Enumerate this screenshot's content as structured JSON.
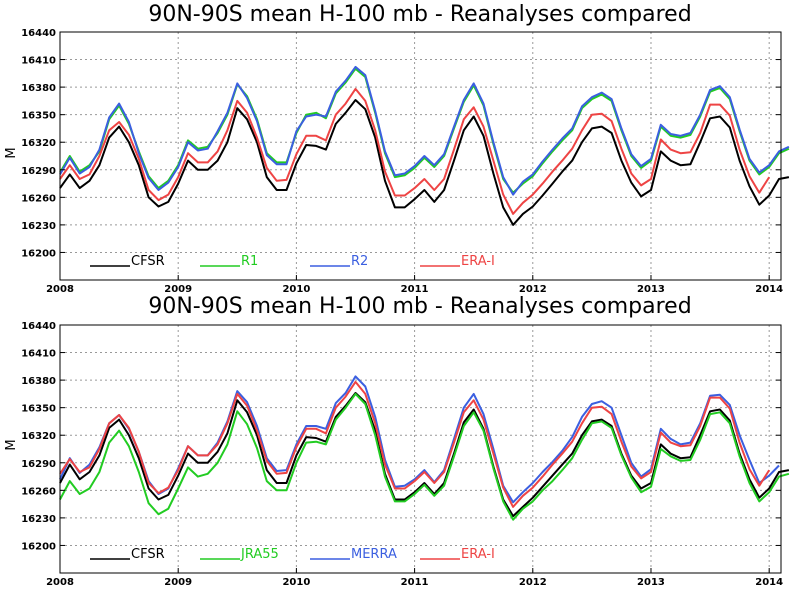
{
  "chart_data": [
    {
      "type": "line",
      "title": "90N-90S mean H-100 mb - Reanalyses compared",
      "ylabel": "M",
      "xlabel": "",
      "xlim": [
        2008,
        2014.1
      ],
      "ylim": [
        16170,
        16440
      ],
      "yticks": [
        16200,
        16230,
        16260,
        16290,
        16320,
        16350,
        16380,
        16410,
        16440
      ],
      "xticks": [
        2008,
        2009,
        2010,
        2011,
        2012,
        2013,
        2014
      ],
      "grid": true,
      "legend_placement": "bottom",
      "series": [
        {
          "name": "CFSR",
          "color": "#000000",
          "start": 2008.0,
          "values": [
            16270,
            16285,
            16270,
            16278,
            16295,
            16325,
            16337,
            16320,
            16295,
            16260,
            16250,
            16255,
            16275,
            16300,
            16290,
            16290,
            16300,
            16320,
            16357,
            16345,
            16320,
            16282,
            16268,
            16268,
            16297,
            16317,
            16316,
            16312,
            16340,
            16352,
            16366,
            16356,
            16325,
            16278,
            16249,
            16249,
            16258,
            16268,
            16255,
            16268,
            16300,
            16333,
            16348,
            16327,
            16286,
            16249,
            16230,
            16242,
            16250,
            16262,
            16275,
            16288,
            16300,
            16320,
            16335,
            16337,
            16330,
            16300,
            16276,
            16261,
            16268,
            16310,
            16300,
            16295,
            16296,
            16320,
            16346,
            16348,
            16336,
            16300,
            16272,
            16252,
            16262,
            16280,
            16282
          ]
        },
        {
          "name": "R1",
          "color": "#22cc22",
          "start": 2008.0,
          "values": [
            16287,
            16305,
            16288,
            16295,
            16310,
            16345,
            16360,
            16340,
            16310,
            16283,
            16270,
            16278,
            16295,
            16322,
            16313,
            16315,
            16330,
            16350,
            16383,
            16370,
            16345,
            16308,
            16298,
            16298,
            16330,
            16350,
            16352,
            16346,
            16373,
            16385,
            16400,
            16391,
            16352,
            16308,
            16282,
            16284,
            16292,
            16303,
            16293,
            16305,
            16335,
            16364,
            16382,
            16360,
            16318,
            16280,
            16265,
            16275,
            16283,
            16297,
            16310,
            16322,
            16333,
            16357,
            16367,
            16372,
            16365,
            16333,
            16305,
            16292,
            16300,
            16337,
            16327,
            16325,
            16328,
            16348,
            16375,
            16379,
            16367,
            16332,
            16300,
            16285,
            16293,
            16308,
            16313
          ]
        },
        {
          "name": "R2",
          "color": "#3b5fe0",
          "start": 2008.0,
          "values": [
            16285,
            16303,
            16286,
            16293,
            16312,
            16347,
            16362,
            16342,
            16308,
            16281,
            16268,
            16276,
            16293,
            16320,
            16311,
            16313,
            16332,
            16352,
            16384,
            16368,
            16343,
            16306,
            16296,
            16296,
            16332,
            16348,
            16350,
            16348,
            16375,
            16387,
            16402,
            16393,
            16354,
            16310,
            16284,
            16286,
            16294,
            16305,
            16295,
            16307,
            16337,
            16366,
            16384,
            16362,
            16320,
            16282,
            16263,
            16277,
            16285,
            16299,
            16312,
            16324,
            16335,
            16359,
            16369,
            16374,
            16367,
            16335,
            16307,
            16294,
            16302,
            16339,
            16329,
            16327,
            16330,
            16350,
            16377,
            16381,
            16369,
            16334,
            16302,
            16287,
            16295,
            16310,
            16315
          ]
        },
        {
          "name": "ERA-I",
          "color": "#ee4444",
          "start": 2008.0,
          "values": [
            16280,
            16295,
            16280,
            16285,
            16305,
            16333,
            16342,
            16328,
            16302,
            16268,
            16257,
            16263,
            16282,
            16308,
            16298,
            16298,
            16310,
            16333,
            16365,
            16352,
            16325,
            16292,
            16278,
            16279,
            16307,
            16327,
            16327,
            16322,
            16350,
            16362,
            16378,
            16365,
            16333,
            16288,
            16262,
            16262,
            16270,
            16280,
            16268,
            16280,
            16312,
            16345,
            16358,
            16337,
            16300,
            16263,
            16242,
            16254,
            16263,
            16275,
            16288,
            16300,
            16313,
            16333,
            16350,
            16351,
            16343,
            16313,
            16286,
            16273,
            16280,
            16323,
            16312,
            16308,
            16309,
            16330,
            16361,
            16361,
            16349,
            16312,
            16283,
            16265,
            16282
          ]
        }
      ]
    },
    {
      "type": "line",
      "title": "90N-90S mean H-100 mb - Reanalyses compared",
      "ylabel": "M",
      "xlabel": "",
      "xlim": [
        2008,
        2014.1
      ],
      "ylim": [
        16170,
        16440
      ],
      "yticks": [
        16200,
        16230,
        16260,
        16290,
        16320,
        16350,
        16380,
        16410,
        16440
      ],
      "xticks": [
        2008,
        2009,
        2010,
        2011,
        2012,
        2013,
        2014
      ],
      "grid": true,
      "legend_placement": "bottom",
      "series": [
        {
          "name": "CFSR",
          "color": "#000000",
          "start": 2008.0,
          "values": [
            16268,
            16288,
            16272,
            16280,
            16298,
            16328,
            16337,
            16320,
            16295,
            16262,
            16250,
            16255,
            16276,
            16300,
            16290,
            16290,
            16302,
            16322,
            16358,
            16345,
            16320,
            16282,
            16268,
            16268,
            16298,
            16318,
            16317,
            16313,
            16340,
            16352,
            16366,
            16356,
            16325,
            16278,
            16250,
            16250,
            16258,
            16268,
            16256,
            16268,
            16300,
            16334,
            16348,
            16327,
            16286,
            16250,
            16232,
            16242,
            16252,
            16264,
            16276,
            16288,
            16300,
            16320,
            16335,
            16337,
            16330,
            16300,
            16276,
            16262,
            16268,
            16310,
            16300,
            16295,
            16296,
            16320,
            16346,
            16348,
            16336,
            16300,
            16272,
            16252,
            16262,
            16280,
            16282
          ]
        },
        {
          "name": "JRA55",
          "color": "#22cc22",
          "start": 2008.0,
          "values": [
            16250,
            16270,
            16256,
            16262,
            16280,
            16312,
            16325,
            16308,
            16280,
            16246,
            16234,
            16240,
            16262,
            16285,
            16275,
            16278,
            16290,
            16310,
            16346,
            16332,
            16306,
            16270,
            16260,
            16260,
            16290,
            16312,
            16313,
            16310,
            16337,
            16350,
            16365,
            16354,
            16320,
            16275,
            16248,
            16248,
            16256,
            16266,
            16254,
            16265,
            16297,
            16330,
            16345,
            16325,
            16284,
            16248,
            16228,
            16240,
            16248,
            16260,
            16270,
            16282,
            16295,
            16315,
            16333,
            16335,
            16328,
            16298,
            16274,
            16258,
            16264,
            16305,
            16297,
            16292,
            16293,
            16315,
            16343,
            16345,
            16333,
            16297,
            16268,
            16248,
            16258,
            16275,
            16278
          ]
        },
        {
          "name": "MERRA",
          "color": "#3b5fe0",
          "start": 2008.0,
          "values": [
            16272,
            16295,
            16279,
            16288,
            16307,
            16333,
            16342,
            16327,
            16302,
            16270,
            16256,
            16262,
            16284,
            16308,
            16298,
            16298,
            16312,
            16335,
            16368,
            16356,
            16330,
            16295,
            16281,
            16282,
            16310,
            16330,
            16330,
            16327,
            16355,
            16366,
            16384,
            16373,
            16340,
            16293,
            16264,
            16265,
            16272,
            16282,
            16269,
            16282,
            16316,
            16350,
            16365,
            16343,
            16305,
            16265,
            16247,
            16258,
            16268,
            16280,
            16291,
            16303,
            16318,
            16340,
            16354,
            16357,
            16350,
            16320,
            16290,
            16275,
            16283,
            16327,
            16316,
            16310,
            16312,
            16333,
            16363,
            16364,
            16353,
            16320,
            16293,
            16268,
            16276,
            16287
          ]
        },
        {
          "name": "ERA-I",
          "color": "#ee4444",
          "start": 2008.0,
          "values": [
            16278,
            16294,
            16280,
            16285,
            16305,
            16333,
            16342,
            16328,
            16302,
            16268,
            16257,
            16263,
            16282,
            16308,
            16298,
            16298,
            16310,
            16333,
            16365,
            16352,
            16325,
            16292,
            16278,
            16279,
            16307,
            16327,
            16327,
            16322,
            16350,
            16362,
            16378,
            16365,
            16333,
            16288,
            16262,
            16262,
            16270,
            16280,
            16268,
            16280,
            16312,
            16345,
            16358,
            16337,
            16300,
            16263,
            16242,
            16254,
            16263,
            16275,
            16288,
            16300,
            16313,
            16333,
            16350,
            16351,
            16343,
            16313,
            16286,
            16273,
            16280,
            16323,
            16312,
            16308,
            16309,
            16330,
            16361,
            16361,
            16349,
            16312,
            16283,
            16265,
            16282
          ]
        }
      ]
    }
  ]
}
